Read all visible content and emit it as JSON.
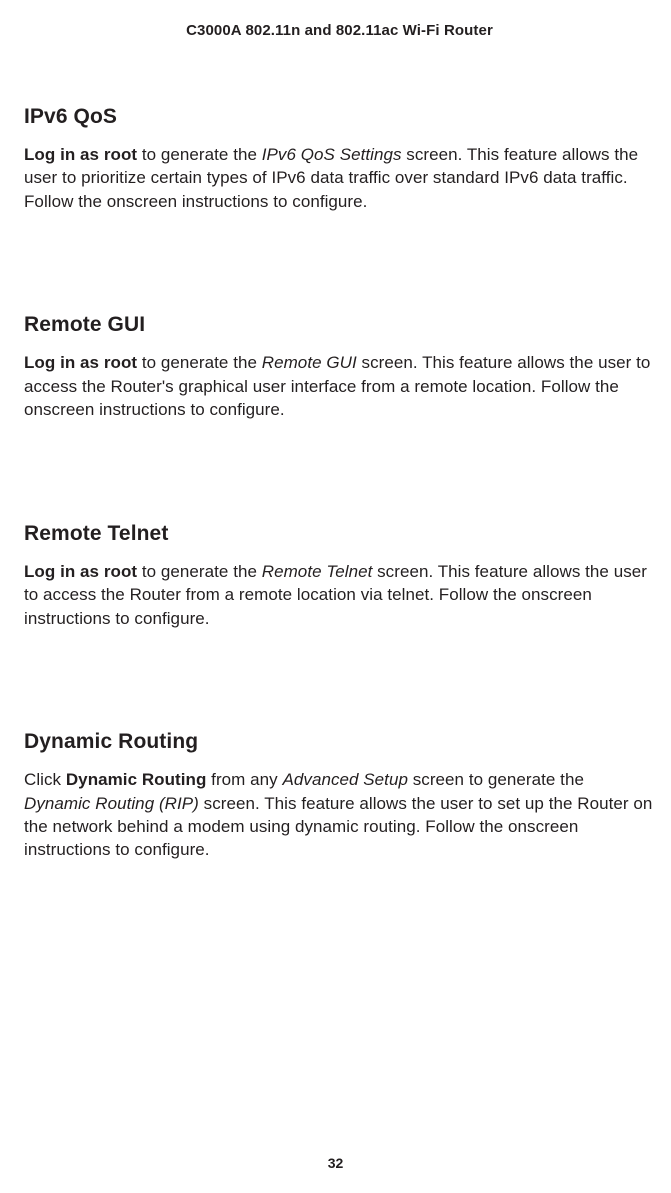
{
  "doc_title": "C3000A 802.11n and 802.11ac Wi-Fi Router",
  "sections": [
    {
      "heading": "IPv6 QoS",
      "body_html": "<b>Log in as root</b> to generate the <i>IPv6 QoS Settings</i> screen. This feature allows the user to prioritize certain types of IPv6 data traffic over standard IPv6 data traffic. Follow the onscreen instructions to configure."
    },
    {
      "heading": "Remote GUI",
      "body_html": "<b>Log in as root</b> to generate the <i>Remote GUI</i> screen. This feature allows the user to access the Router's graphical user interface from a remote location. Follow the onscreen instructions to configure."
    },
    {
      "heading": "Remote Telnet",
      "body_html": "<b>Log in as root</b> to generate the <i>Remote Telnet</i> screen. This feature allows the user to access the Router from a remote location via telnet. Follow the onscreen instructions to configure."
    },
    {
      "heading": "Dynamic Routing",
      "body_html": "Click <b>Dynamic Routing</b> from any <i>Advanced Setup</i> screen to generate the <i>Dynamic Routing (RIP)</i> screen. This feature allows the user to set up the Router on the network behind a modem using dynamic routing. Follow the onscreen instructions to configure."
    }
  ],
  "page_number": "32"
}
